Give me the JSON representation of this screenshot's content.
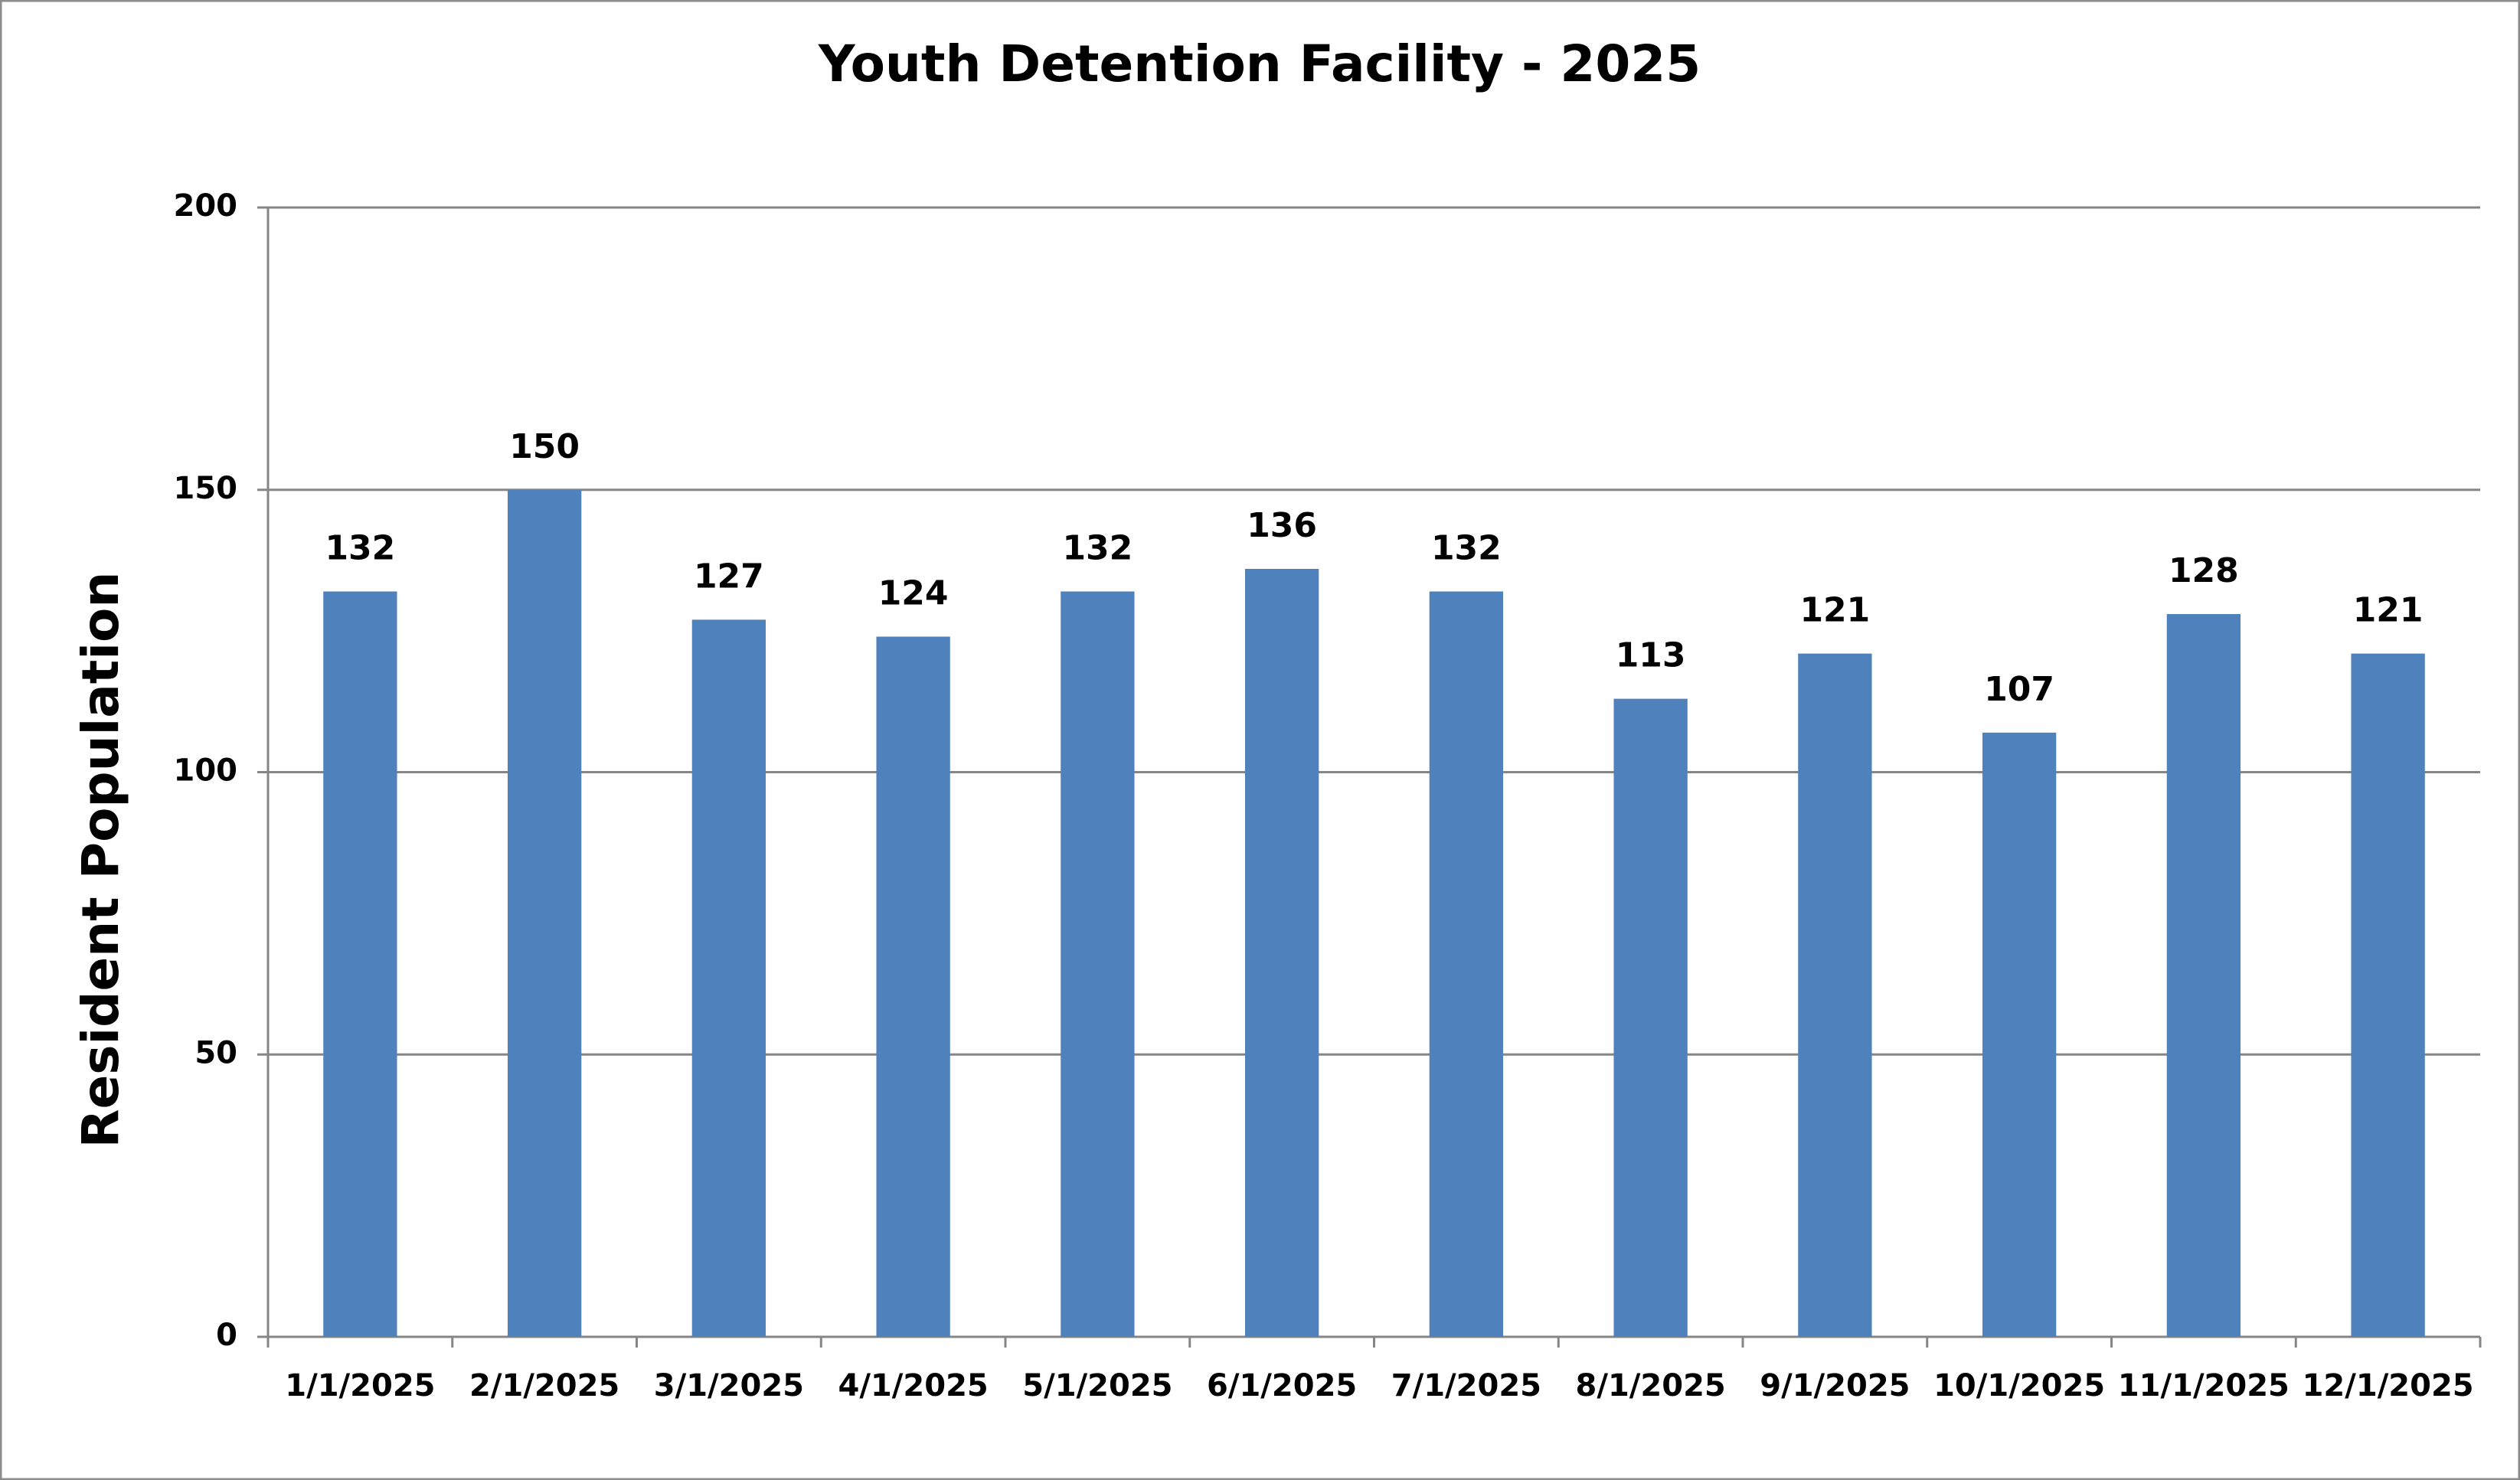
{
  "chart_data": {
    "type": "bar",
    "title": "Youth Detention Facility - 2025",
    "y_label": "Resident Population",
    "categories": [
      "1/1/2025",
      "2/1/2025",
      "3/1/2025",
      "4/1/2025",
      "5/1/2025",
      "6/1/2025",
      "7/1/2025",
      "8/1/2025",
      "9/1/2025",
      "10/1/2025",
      "11/1/2025",
      "12/1/2025"
    ],
    "values": [
      132,
      150,
      127,
      124,
      132,
      136,
      132,
      113,
      121,
      107,
      128,
      121
    ],
    "color": "#4f81bd",
    "ylim": [
      0,
      200
    ],
    "yticks": [
      0,
      50,
      100,
      150,
      200
    ],
    "grid": true
  }
}
